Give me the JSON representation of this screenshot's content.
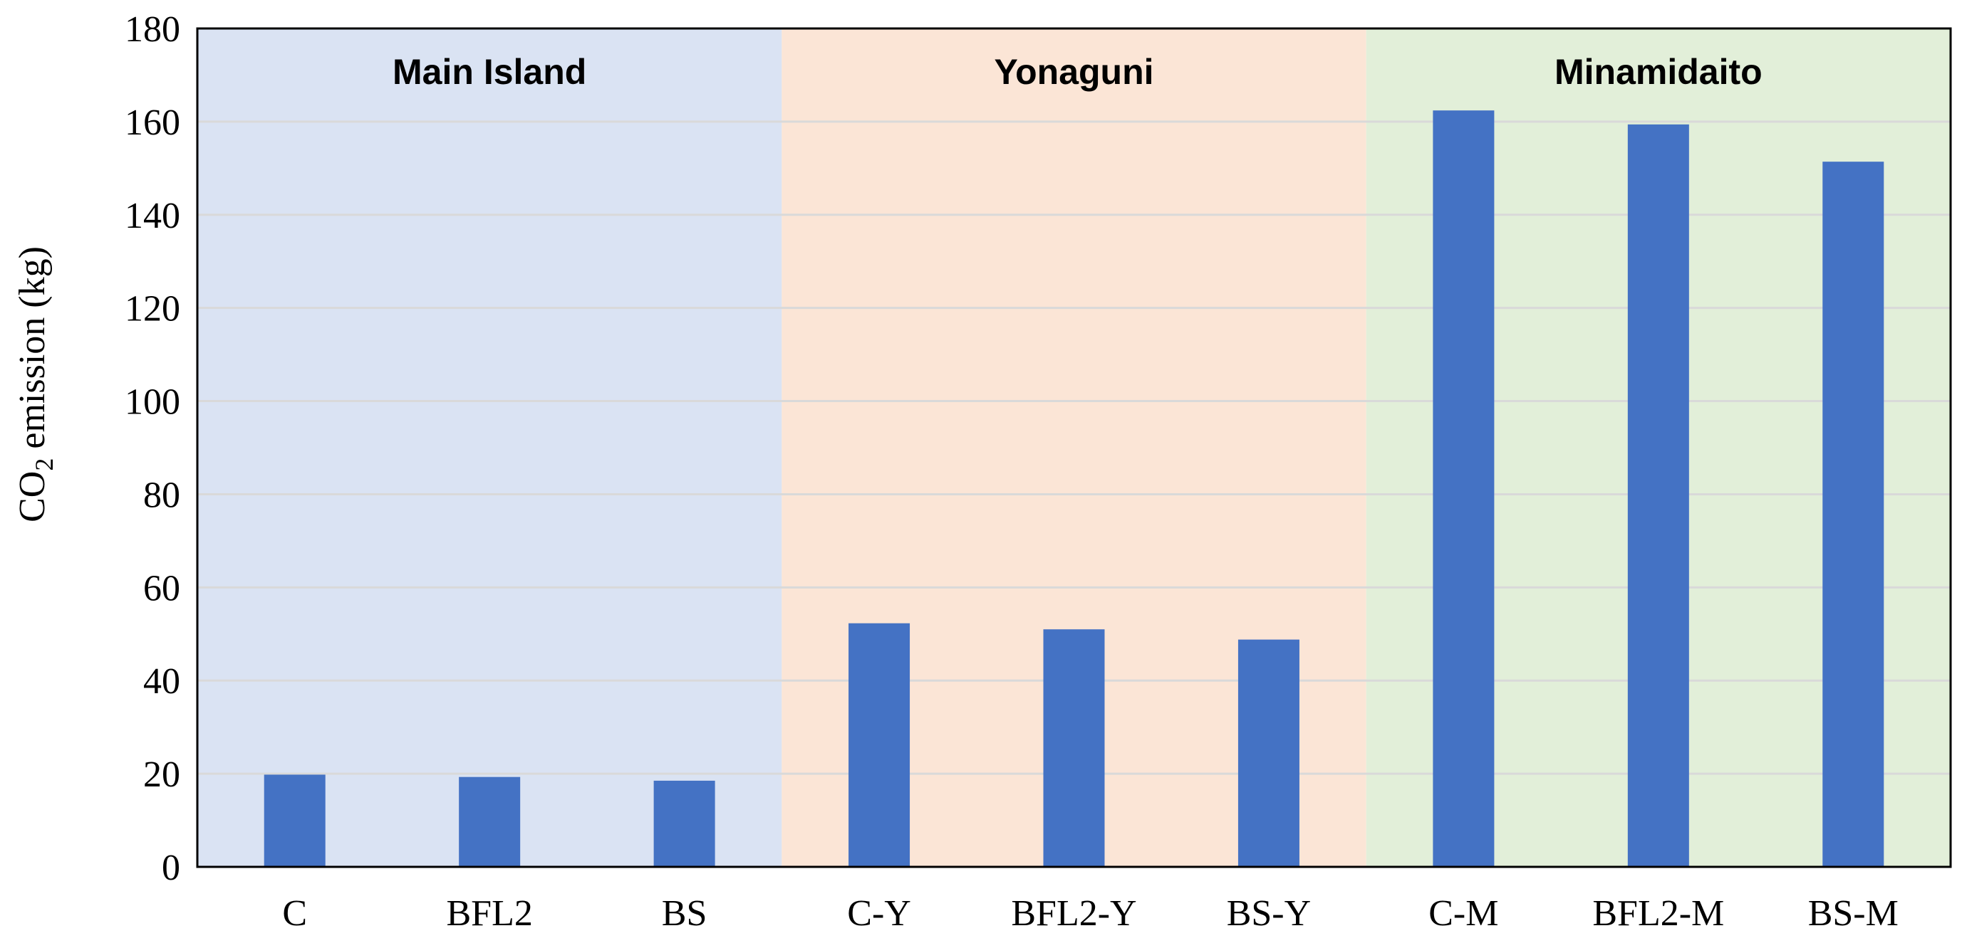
{
  "chart_data": {
    "type": "bar",
    "title": "",
    "xlabel": "",
    "ylabel": {
      "prefix": "CO",
      "subscript": "2",
      "suffix": " emission (kg)"
    },
    "ylim": [
      0,
      180
    ],
    "yticks": [
      "0",
      "20",
      "40",
      "60",
      "80",
      "100",
      "120",
      "140",
      "160",
      "180"
    ],
    "grid": true,
    "categories": [
      "C",
      "BFL2",
      "BS",
      "C-Y",
      "BFL2-Y",
      "BS-Y",
      "C-M",
      "BFL2-M",
      "BS-M"
    ],
    "values": [
      19.8,
      19.3,
      18.5,
      52.3,
      51.0,
      48.8,
      162.4,
      159.4,
      151.4
    ],
    "bar_color": "#4472c4",
    "grid_color": "#d9d9d9",
    "groups": [
      {
        "label": "Main Island",
        "start": 0,
        "end": 2,
        "color": "#dae3f3"
      },
      {
        "label": "Yonaguni",
        "start": 3,
        "end": 5,
        "color": "#fbe5d6"
      },
      {
        "label": "Minamidaito",
        "start": 6,
        "end": 8,
        "color": "#e2efd9"
      }
    ]
  }
}
